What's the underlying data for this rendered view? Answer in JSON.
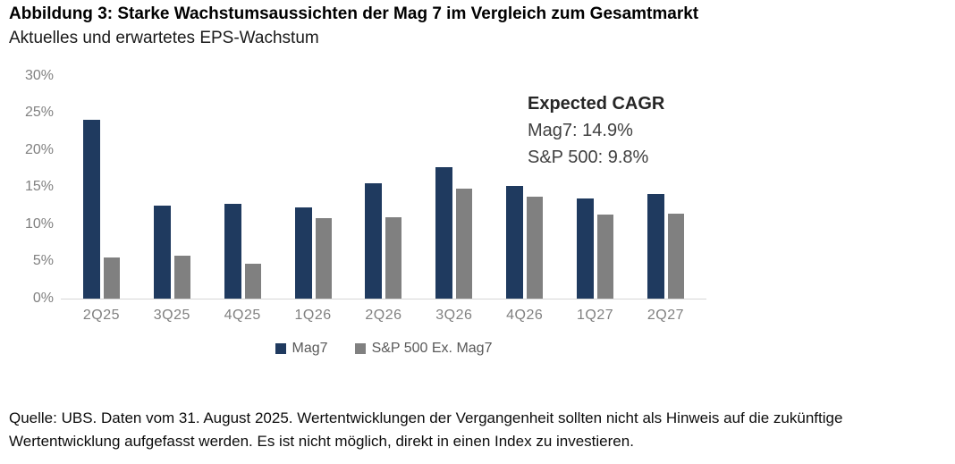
{
  "header": {
    "title": "Abbildung 3: Starke Wachstumsaussichten der Mag 7 im Vergleich zum Gesamtmarkt",
    "subtitle": "Aktuelles und erwartetes EPS-Wachstum"
  },
  "chart_data": {
    "type": "bar",
    "categories": [
      "2Q25",
      "3Q25",
      "4Q25",
      "1Q26",
      "2Q26",
      "3Q26",
      "4Q26",
      "1Q27",
      "2Q27"
    ],
    "series": [
      {
        "name": "Mag7",
        "color": "#1f3a5f",
        "values": [
          24.0,
          12.5,
          12.7,
          12.2,
          15.5,
          17.7,
          15.1,
          13.4,
          14.0
        ]
      },
      {
        "name": "S&P 500 Ex. Mag7",
        "color": "#808080",
        "values": [
          5.5,
          5.8,
          4.6,
          10.8,
          10.9,
          14.8,
          13.7,
          11.3,
          11.4
        ]
      }
    ],
    "ylabel": "",
    "xlabel": "",
    "ylim": [
      0,
      30
    ],
    "yticks": [
      "30%",
      "25%",
      "20%",
      "15%",
      "10%",
      "5%",
      "0%"
    ],
    "grid": false,
    "legend_position": "bottom",
    "annotation": {
      "title": "Expected CAGR",
      "lines": [
        "Mag7: 14.9%",
        "S&P 500: 9.8%"
      ]
    }
  },
  "footer": {
    "text": "Quelle: UBS. Daten vom 31. August 2025. Wertentwicklungen der Vergangenheit sollten nicht als Hinweis auf die zukünftige Wertentwicklung aufgefasst werden. Es ist nicht möglich, direkt in einen Index zu investieren."
  }
}
